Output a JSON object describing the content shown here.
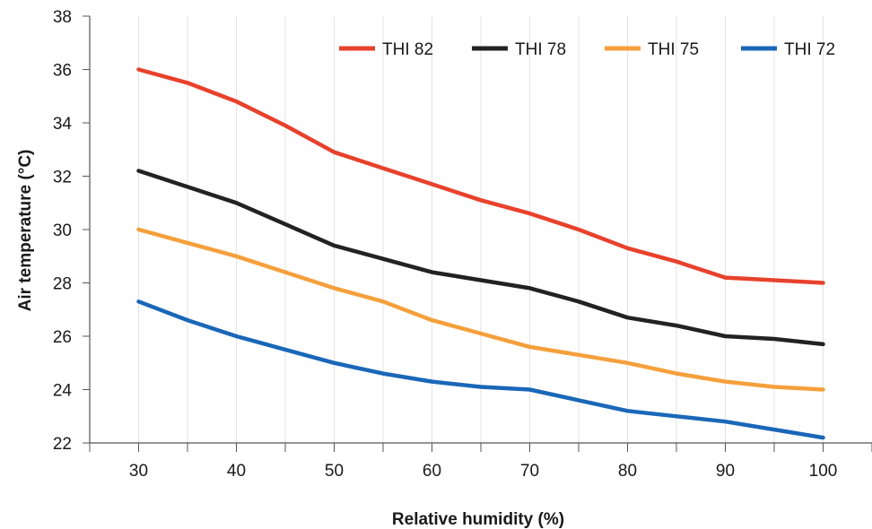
{
  "chart_data": {
    "type": "line",
    "xlabel": "Relative humidity (%)",
    "ylabel": "Air temperature (°C)",
    "x": [
      30,
      35,
      40,
      45,
      50,
      55,
      60,
      65,
      70,
      75,
      80,
      85,
      90,
      95,
      100
    ],
    "xlim": [
      25,
      105
    ],
    "ylim": [
      22,
      38
    ],
    "xticks": [
      30,
      40,
      50,
      60,
      70,
      80,
      90,
      100
    ],
    "yticks": [
      22,
      24,
      26,
      28,
      30,
      32,
      34,
      36,
      38
    ],
    "grid": "vertical",
    "legend_position": "top-right",
    "series": [
      {
        "name": "THI 82",
        "color": "#e8412c",
        "values": [
          36.0,
          35.5,
          34.8,
          33.9,
          32.9,
          32.3,
          31.7,
          31.1,
          30.6,
          30.0,
          29.3,
          28.8,
          28.2,
          28.1,
          28.0
        ]
      },
      {
        "name": "THI 78",
        "color": "#222222",
        "values": [
          32.2,
          31.6,
          31.0,
          30.2,
          29.4,
          28.9,
          28.4,
          28.1,
          27.8,
          27.3,
          26.7,
          26.4,
          26.0,
          25.9,
          25.7
        ]
      },
      {
        "name": "THI 75",
        "color": "#f5a03c",
        "values": [
          30.0,
          29.5,
          29.0,
          28.4,
          27.8,
          27.3,
          26.6,
          26.1,
          25.6,
          25.3,
          25.0,
          24.6,
          24.3,
          24.1,
          24.0
        ]
      },
      {
        "name": "THI 72",
        "color": "#1a67b8",
        "values": [
          27.3,
          26.6,
          26.0,
          25.5,
          25.0,
          24.6,
          24.3,
          24.1,
          24.0,
          23.6,
          23.2,
          23.0,
          22.8,
          22.5,
          22.2
        ]
      }
    ]
  }
}
